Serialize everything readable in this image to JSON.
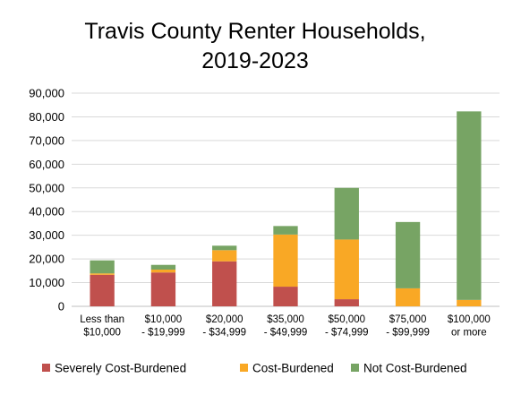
{
  "chart_data": {
    "type": "bar",
    "stacked": true,
    "title": "Travis County Renter Households, 2019-2023",
    "title_lines": [
      "Travis County Renter Households,",
      "2019-2023"
    ],
    "xlabel": "",
    "ylabel": "",
    "ylim": [
      0,
      90000
    ],
    "ytick_step": 10000,
    "yticks": [
      "0",
      "10,000",
      "20,000",
      "30,000",
      "40,000",
      "50,000",
      "60,000",
      "70,000",
      "80,000",
      "90,000"
    ],
    "grid": true,
    "legend_position": "bottom",
    "categories": [
      [
        "Less than",
        "$10,000"
      ],
      [
        "$10,000",
        "- $19,999"
      ],
      [
        "$20,000",
        "- $34,999"
      ],
      [
        "$35,000",
        "- $49,999"
      ],
      [
        "$50,000",
        "- $74,999"
      ],
      [
        "$75,000",
        "- $99,999"
      ],
      [
        "$100,000",
        "or more"
      ]
    ],
    "series": [
      {
        "name": "Severely Cost-Burdened",
        "color": "#C0504D",
        "values": [
          13300,
          14300,
          19000,
          8300,
          3000,
          0,
          0
        ]
      },
      {
        "name": "Cost-Burdened",
        "color": "#F9A825",
        "values": [
          600,
          1200,
          4700,
          22000,
          25200,
          7600,
          2700
        ]
      },
      {
        "name": "Not Cost-Burdened",
        "color": "#77A464",
        "values": [
          5500,
          2000,
          1900,
          3600,
          21800,
          28000,
          79600
        ]
      }
    ]
  }
}
